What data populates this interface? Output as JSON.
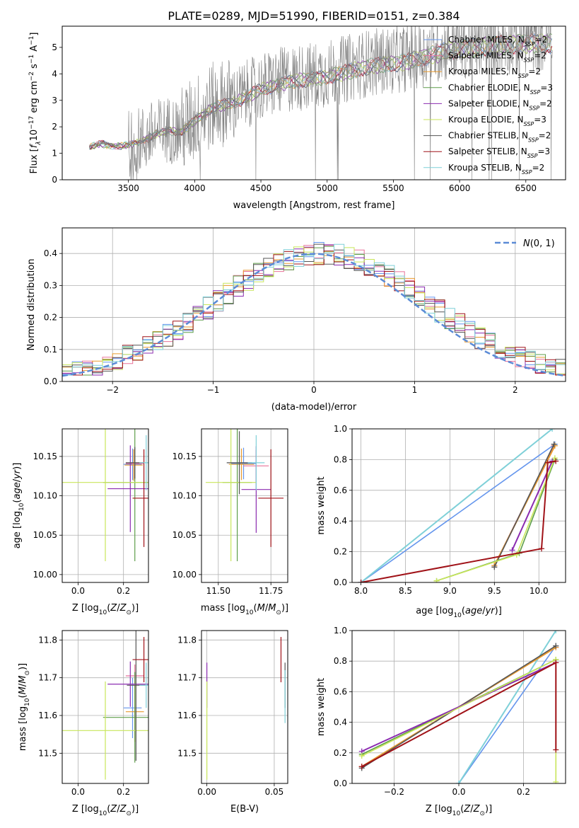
{
  "colors": {
    "chabrier_miles": "#6495ED",
    "salpeter_miles": "#E8729A",
    "kroupa_miles": "#E89A2E",
    "chabrier_elodie": "#5E9E4A",
    "salpeter_elodie": "#8B2BB0",
    "kroupa_elodie": "#C8E65A",
    "chabrier_stelib": "#555555",
    "salpeter_stelib": "#A01218",
    "kroupa_stelib": "#7FD0D8",
    "data_spectrum": "#808080",
    "mass_weight_orange": "#E07A3A"
  },
  "chart_data": [
    {
      "id": "spectrum",
      "type": "line",
      "title": "PLATE=0289, MJD=51990, FIBERID=0151, z=0.384",
      "xlabel": "wavelength [Angstrom, rest frame]",
      "ylabel": "Flux [f_λ 10^-17 erg cm^-2 s^-1 A^-1]",
      "xlim": [
        3000,
        6800
      ],
      "ylim": [
        0,
        5.8
      ],
      "xticks": [
        3500,
        4000,
        4500,
        5000,
        5500,
        6000,
        6500
      ],
      "yticks": [
        0,
        1,
        2,
        3,
        4,
        5
      ],
      "legend_position": "top-right",
      "legend": [
        {
          "label": "Chabrier MILES, N",
          "sub": "SSP",
          "suffix": "=2",
          "color": "#6495ED"
        },
        {
          "label": "Salpeter MILES, N",
          "sub": "SSP",
          "suffix": "=2",
          "color": "#E8729A"
        },
        {
          "label": "Kroupa MILES, N",
          "sub": "SSP",
          "suffix": "=2",
          "color": "#E89A2E"
        },
        {
          "label": "Chabrier ELODIE, N",
          "sub": "SSP",
          "suffix": "=3",
          "color": "#5E9E4A"
        },
        {
          "label": "Salpeter ELODIE, N",
          "sub": "SSP",
          "suffix": "=2",
          "color": "#8B2BB0"
        },
        {
          "label": "Kroupa ELODIE, N",
          "sub": "SSP",
          "suffix": "=3",
          "color": "#C8E65A"
        },
        {
          "label": "Chabrier STELIB, N",
          "sub": "SSP",
          "suffix": "=2",
          "color": "#555555"
        },
        {
          "label": "Salpeter STELIB, N",
          "sub": "SSP",
          "suffix": "=3",
          "color": "#A01218"
        },
        {
          "label": "Kroupa STELIB, N",
          "sub": "SSP",
          "suffix": "=2",
          "color": "#7FD0D8"
        }
      ],
      "continuum": {
        "x": [
          3200,
          3300,
          3400,
          3500,
          3600,
          3700,
          3800,
          3900,
          4000,
          4100,
          4200,
          4300,
          4500,
          4700,
          5000,
          5300,
          5600,
          5900,
          6200,
          6500,
          6700
        ],
        "y": [
          1.25,
          1.4,
          1.3,
          1.35,
          1.5,
          1.75,
          1.9,
          1.85,
          2.3,
          2.7,
          2.9,
          3.0,
          3.5,
          3.8,
          4.0,
          4.4,
          4.6,
          5.0,
          5.2,
          5.3,
          5.3
        ]
      },
      "noise_range": [
        3500,
        6700
      ]
    },
    {
      "id": "residuals",
      "type": "histogram",
      "xlabel": "(data-model)/error",
      "ylabel": "Normed distribution",
      "xlim": [
        -2.5,
        2.5
      ],
      "ylim": [
        0,
        0.48
      ],
      "xticks": [
        -2,
        -1,
        0,
        1,
        2
      ],
      "yticks": [
        0.0,
        0.1,
        0.2,
        0.3,
        0.4
      ],
      "legend_position": "top-right",
      "legend": [
        {
          "label": "N(0,1)",
          "color": "#5B8BD6",
          "style": "dashed"
        }
      ],
      "bin_width": 0.1
    },
    {
      "id": "age_vs_Z",
      "type": "errorbar",
      "xlabel": "Z [log10(Z/Z⊙)]",
      "ylabel": "age [log10(age/yr)]",
      "xlim": [
        -0.07,
        0.31
      ],
      "ylim": [
        9.99,
        10.185
      ],
      "xticks": [
        0.0,
        0.2
      ],
      "yticks": [
        10.0,
        10.05,
        10.1,
        10.15
      ],
      "points": [
        {
          "color": "#6495ED",
          "x": 0.24,
          "xerr": 0.04,
          "y": 10.14,
          "yerr": 0.02
        },
        {
          "color": "#E8729A",
          "x": 0.25,
          "xerr": 0.04,
          "y": 10.141,
          "yerr": 0.02
        },
        {
          "color": "#E89A2E",
          "x": 0.245,
          "xerr": 0.04,
          "y": 10.139,
          "yerr": 0.02
        },
        {
          "color": "#5E9E4A",
          "x": 0.25,
          "xerr": 0.14,
          "y": 10.117,
          "yerr": 0.1
        },
        {
          "color": "#8B2BB0",
          "x": 0.23,
          "xerr": 0.1,
          "y": 10.109,
          "yerr": 0.055
        },
        {
          "color": "#C8E65A",
          "x": 0.12,
          "xerr": 0.3,
          "y": 10.117,
          "yerr": 0.1
        },
        {
          "color": "#555555",
          "x": 0.25,
          "xerr": 0.04,
          "y": 10.142,
          "yerr": 0.02
        },
        {
          "color": "#A01218",
          "x": 0.29,
          "xerr": 0.05,
          "y": 10.097,
          "yerr": 0.062
        },
        {
          "color": "#7FD0D8",
          "x": 0.3,
          "xerr": 0.03,
          "y": 10.142,
          "yerr": 0.035
        }
      ]
    },
    {
      "id": "age_vs_mass",
      "type": "errorbar",
      "xlabel": "mass [log10(M/M⊙)]",
      "ylabel": "",
      "xlim": [
        11.42,
        11.83
      ],
      "ylim": [
        9.99,
        10.185
      ],
      "xticks": [
        11.5,
        11.75
      ],
      "yticks": [
        10.0,
        10.05,
        10.1,
        10.15
      ],
      "points": [
        {
          "color": "#6495ED",
          "x": 11.62,
          "xerr": 0.06,
          "y": 10.141,
          "yerr": 0.02
        },
        {
          "color": "#E8729A",
          "x": 11.68,
          "xerr": 0.06,
          "y": 10.138,
          "yerr": 0.02
        },
        {
          "color": "#E89A2E",
          "x": 11.61,
          "xerr": 0.06,
          "y": 10.14,
          "yerr": 0.02
        },
        {
          "color": "#5E9E4A",
          "x": 11.59,
          "xerr": 0.07,
          "y": 10.117,
          "yerr": 0.1
        },
        {
          "color": "#8B2BB0",
          "x": 11.68,
          "xerr": 0.07,
          "y": 10.108,
          "yerr": 0.055
        },
        {
          "color": "#C8E65A",
          "x": 11.56,
          "xerr": 0.12,
          "y": 10.117,
          "yerr": 0.1
        },
        {
          "color": "#555555",
          "x": 11.6,
          "xerr": 0.06,
          "y": 10.142,
          "yerr": 0.04
        },
        {
          "color": "#A01218",
          "x": 11.75,
          "xerr": 0.06,
          "y": 10.097,
          "yerr": 0.062
        },
        {
          "color": "#7FD0D8",
          "x": 11.68,
          "xerr": 0.04,
          "y": 10.142,
          "yerr": 0.035
        }
      ]
    },
    {
      "id": "massweight_vs_age",
      "type": "line",
      "xlabel": "age  [log10(age/yr)]",
      "ylabel": "mass weight",
      "xlim": [
        7.9,
        10.3
      ],
      "ylim": [
        0,
        1.0
      ],
      "xticks": [
        8.0,
        8.5,
        9.0,
        9.5,
        10.0
      ],
      "yticks": [
        0.0,
        0.2,
        0.4,
        0.6,
        0.8,
        1.0
      ],
      "series": [
        {
          "color": "#6495ED",
          "x": [
            8.0,
            10.18
          ],
          "y": [
            0.0,
            0.9
          ]
        },
        {
          "color": "#7FD0D8",
          "x": [
            8.0,
            10.15
          ],
          "y": [
            0.0,
            1.0
          ]
        },
        {
          "color": "#E8729A",
          "x": [
            9.5,
            10.17
          ],
          "y": [
            0.11,
            0.89
          ]
        },
        {
          "color": "#E89A2E",
          "x": [
            9.5,
            10.18
          ],
          "y": [
            0.11,
            0.89
          ]
        },
        {
          "color": "#555555",
          "x": [
            9.5,
            10.17
          ],
          "y": [
            0.1,
            0.9
          ]
        },
        {
          "color": "#5E9E4A",
          "x": [
            8.85,
            9.78,
            10.18
          ],
          "y": [
            0.01,
            0.19,
            0.8
          ]
        },
        {
          "color": "#8B2BB0",
          "x": [
            9.7,
            10.15
          ],
          "y": [
            0.21,
            0.79
          ]
        },
        {
          "color": "#C8E65A",
          "x": [
            8.85,
            9.75,
            10.18
          ],
          "y": [
            0.01,
            0.18,
            0.81
          ]
        },
        {
          "color": "#A01218",
          "x": [
            8.0,
            10.03,
            10.1,
            10.19
          ],
          "y": [
            0.0,
            0.22,
            0.78,
            0.79
          ]
        }
      ]
    },
    {
      "id": "mass_vs_Z",
      "type": "errorbar",
      "xlabel": "Z [log10(Z/Z⊙)]",
      "ylabel": "mass [log10(M/M⊙)]",
      "xlim": [
        -0.07,
        0.31
      ],
      "ylim": [
        11.42,
        11.825
      ],
      "xticks": [
        0.0,
        0.2
      ],
      "yticks": [
        11.5,
        11.6,
        11.7,
        11.8
      ],
      "points": [
        {
          "color": "#6495ED",
          "x": 0.24,
          "xerr": 0.04,
          "y": 11.62,
          "yerr": 0.08
        },
        {
          "color": "#E8729A",
          "x": 0.25,
          "xerr": 0.04,
          "y": 11.705,
          "yerr": 0.03
        },
        {
          "color": "#E89A2E",
          "x": 0.25,
          "xerr": 0.04,
          "y": 11.61,
          "yerr": 0.08
        },
        {
          "color": "#5E9E4A",
          "x": 0.25,
          "xerr": 0.14,
          "y": 11.595,
          "yerr": 0.12
        },
        {
          "color": "#8B2BB0",
          "x": 0.23,
          "xerr": 0.1,
          "y": 11.683,
          "yerr": 0.06
        },
        {
          "color": "#C8E65A",
          "x": 0.12,
          "xerr": 0.3,
          "y": 11.56,
          "yerr": 0.13
        },
        {
          "color": "#555555",
          "x": 0.255,
          "xerr": 0.04,
          "y": 11.68,
          "yerr": 0.2
        },
        {
          "color": "#A01218",
          "x": 0.29,
          "xerr": 0.05,
          "y": 11.748,
          "yerr": 0.06
        },
        {
          "color": "#7FD0D8",
          "x": 0.3,
          "xerr": 0.03,
          "y": 11.68,
          "yerr": 0.06
        }
      ]
    },
    {
      "id": "mass_vs_ebv",
      "type": "errorbar",
      "xlabel": "E(B-V)",
      "ylabel": "",
      "xlim": [
        -0.004,
        0.06
      ],
      "ylim": [
        11.42,
        11.825
      ],
      "xticks": [
        0.0,
        0.05
      ],
      "yticks": [
        11.5,
        11.6,
        11.7,
        11.8
      ],
      "points": [
        {
          "color": "#8B2BB0",
          "x": 0.0,
          "xerr": 0,
          "y": 11.68,
          "yerr": 0.06
        },
        {
          "color": "#C8E65A",
          "x": 0.0,
          "xerr": 0,
          "y": 11.56,
          "yerr": 0.13
        },
        {
          "color": "#A01218",
          "x": 0.055,
          "xerr": 0,
          "y": 11.748,
          "yerr": 0.06
        },
        {
          "color": "#555555",
          "x": 0.058,
          "xerr": 0,
          "y": 11.68,
          "yerr": 0.06
        },
        {
          "color": "#7FD0D8",
          "x": 0.058,
          "xerr": 0,
          "y": 11.65,
          "yerr": 0.07
        }
      ]
    },
    {
      "id": "massweight_vs_Z",
      "type": "line",
      "xlabel": "Z [log10(Z/Z⊙)]",
      "ylabel": "mass weight",
      "xlim": [
        -0.33,
        0.33
      ],
      "ylim": [
        0,
        1.0
      ],
      "xticks": [
        -0.2,
        0.0,
        0.2
      ],
      "yticks": [
        0.0,
        0.2,
        0.4,
        0.6,
        0.8,
        1.0
      ],
      "series": [
        {
          "color": "#6495ED",
          "x": [
            0.0,
            0.3
          ],
          "y": [
            0.0,
            0.9
          ]
        },
        {
          "color": "#7FD0D8",
          "x": [
            0.0,
            0.3
          ],
          "y": [
            0.0,
            1.0
          ]
        },
        {
          "color": "#E8729A",
          "x": [
            -0.3,
            0.3
          ],
          "y": [
            0.11,
            0.89
          ]
        },
        {
          "color": "#E89A2E",
          "x": [
            -0.3,
            0.3
          ],
          "y": [
            0.11,
            0.89
          ]
        },
        {
          "color": "#555555",
          "x": [
            -0.3,
            0.3
          ],
          "y": [
            0.1,
            0.9
          ]
        },
        {
          "color": "#5E9E4A",
          "x": [
            -0.3,
            0.3
          ],
          "y": [
            0.19,
            0.81
          ]
        },
        {
          "color": "#8B2BB0",
          "x": [
            -0.3,
            0.3
          ],
          "y": [
            0.21,
            0.79
          ]
        },
        {
          "color": "#C8E65A",
          "x": [
            -0.3,
            0.3,
            0.3
          ],
          "y": [
            0.18,
            0.81,
            0.01
          ]
        },
        {
          "color": "#A01218",
          "x": [
            -0.3,
            0.3,
            0.3
          ],
          "y": [
            0.11,
            0.79,
            0.22
          ]
        }
      ]
    }
  ]
}
